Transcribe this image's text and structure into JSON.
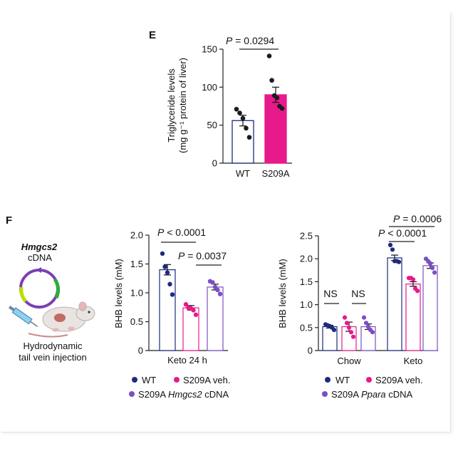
{
  "panels": {
    "e_label": "E",
    "f_label": "F"
  },
  "colors": {
    "wt": "#1c2b7f",
    "s209a": "#e8198b",
    "rescue": "#7a4fc4"
  },
  "illustration": {
    "title_italic": "Hmgcs2",
    "title_rest": "cDNA",
    "caption_line1": "Hydrodynamic",
    "caption_line2": "tail vein injection"
  },
  "legend_mid": {
    "wt": "WT",
    "s209a": "S209A veh.",
    "rescue_prefix": "S209A ",
    "rescue_italic": "Hmgcs2",
    "rescue_suffix": " cDNA"
  },
  "legend_right": {
    "wt": "WT",
    "s209a": "S209A veh.",
    "rescue_prefix": "S209A ",
    "rescue_italic": "Ppara",
    "rescue_suffix": " cDNA"
  },
  "chart_data": [
    {
      "id": "E",
      "type": "bar",
      "ylabel_line1": "Triglyceride levels",
      "ylabel_line2": "(mg g⁻¹ protein of liver)",
      "ylim": [
        0,
        150
      ],
      "yticks": [
        0,
        50,
        100,
        150
      ],
      "categories": [
        "WT",
        "S209A"
      ],
      "means": [
        56,
        90
      ],
      "sem": [
        7,
        10
      ],
      "points": [
        [
          71,
          66,
          59,
          46,
          34
        ],
        [
          141,
          109,
          89,
          86,
          75,
          72
        ]
      ],
      "annotation": "P = 0.0294"
    },
    {
      "id": "F-mid",
      "type": "bar",
      "ylabel": "BHB levels (mM)",
      "ylim": [
        0,
        2.0
      ],
      "yticks": [
        "0",
        "0.5",
        "1.0",
        "1.5",
        "2.0"
      ],
      "xlabel": "Keto 24 h",
      "series_names": [
        "WT",
        "S209A veh.",
        "S209A Hmgcs2 cDNA"
      ],
      "means": [
        1.4,
        0.74,
        1.1
      ],
      "sem": [
        0.09,
        0.04,
        0.05
      ],
      "points": [
        [
          1.68,
          1.45,
          1.35,
          1.15,
          0.97
        ],
        [
          0.8,
          0.74,
          0.73,
          0.7,
          0.62
        ],
        [
          1.2,
          1.18,
          1.1,
          1.05,
          0.98
        ]
      ],
      "annotations": [
        "P < 0.0001",
        "P = 0.0037"
      ]
    },
    {
      "id": "F-right",
      "type": "bar",
      "ylabel": "BHB levels (mM)",
      "ylim": [
        0,
        2.5
      ],
      "yticks": [
        "0",
        "0.5",
        "1.0",
        "1.5",
        "2.0",
        "2.5"
      ],
      "categories": [
        "Chow",
        "Keto"
      ],
      "series_names": [
        "WT",
        "S209A veh.",
        "S209A Ppara cDNA"
      ],
      "means": [
        [
          0.52,
          0.52,
          0.52
        ],
        [
          2.02,
          1.45,
          1.85
        ]
      ],
      "sem": [
        [
          0.03,
          0.1,
          0.06
        ],
        [
          0.06,
          0.05,
          0.06
        ]
      ],
      "points": [
        [
          [
            0.57,
            0.55,
            0.53,
            0.5,
            0.45
          ],
          [
            0.72,
            0.6,
            0.5,
            0.4,
            0.3
          ],
          [
            0.72,
            0.6,
            0.52,
            0.45,
            0.4
          ]
        ],
        [
          [
            2.3,
            2.2,
            1.95,
            1.95,
            1.93
          ],
          [
            1.58,
            1.58,
            1.55,
            1.35,
            1.3
          ],
          [
            2.0,
            1.95,
            1.9,
            1.8,
            1.7
          ]
        ]
      ],
      "annotations": [
        "NS",
        "NS",
        "P < 0.0001",
        "P = 0.0006"
      ]
    }
  ]
}
